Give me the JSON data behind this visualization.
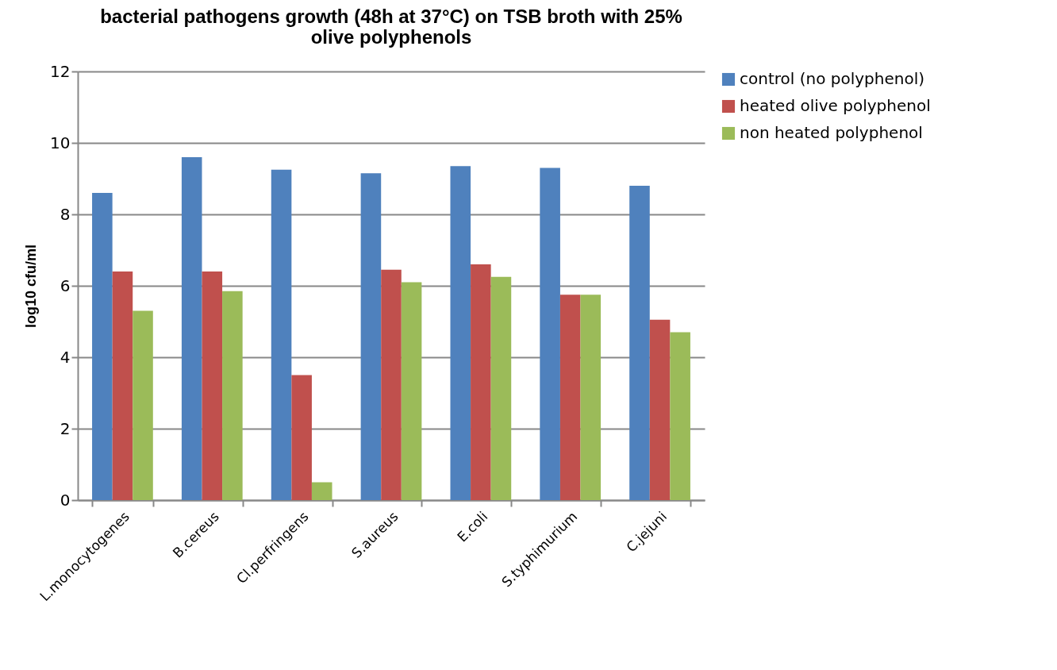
{
  "chart_data": {
    "type": "bar",
    "title": "bacterial pathogens growth (48h at 37°C) on TSB broth with 25% olive polyphenols",
    "ylabel": "log10 cfu/ml",
    "categories": [
      "L.monocytogenes",
      "B.cereus",
      "Cl.perfringens",
      "S.aureus",
      "E.coli",
      "S.typhimurium",
      "C.jejuni"
    ],
    "series": [
      {
        "name": "control (no polyphenol)",
        "color": "#4f81bd",
        "values": [
          8.6,
          9.6,
          9.25,
          9.15,
          9.35,
          9.3,
          8.8
        ]
      },
      {
        "name": "heated olive polyphenol",
        "color": "#c0504d",
        "values": [
          6.4,
          6.4,
          3.5,
          6.45,
          6.6,
          5.75,
          5.05
        ]
      },
      {
        "name": "non heated polyphenol",
        "color": "#9bbb59",
        "values": [
          5.3,
          5.85,
          0.5,
          6.1,
          6.25,
          5.75,
          4.7
        ]
      }
    ],
    "ylim": [
      0,
      12
    ],
    "yticks": [
      0,
      2,
      4,
      6,
      8,
      10,
      12
    ],
    "grid": "y",
    "legend": "right"
  }
}
